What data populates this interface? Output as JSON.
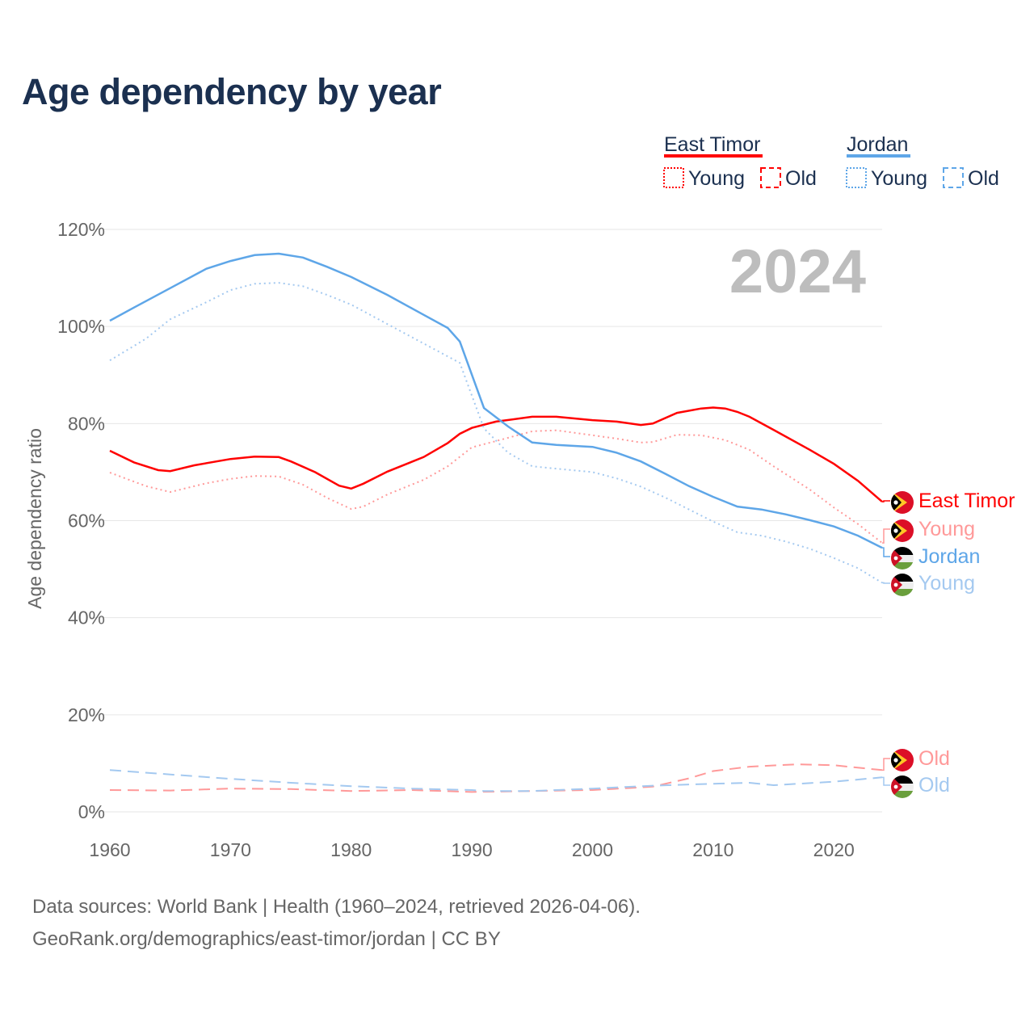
{
  "title": "Age dependency by year",
  "footer": {
    "line1": "Data sources: World Bank | Health (1960–2024, retrieved 2026-04-06).",
    "line2": "GeoRank.org/demographics/east-timor/jordan | CC BY"
  },
  "chart_data": {
    "type": "line",
    "title": "Age dependency by year",
    "ylabel": "Age dependency ratio",
    "xlabel": "",
    "xlim": [
      1960,
      2024
    ],
    "ylim": [
      0,
      120
    ],
    "x_ticks": [
      "1960",
      "1970",
      "1980",
      "1990",
      "2000",
      "2010",
      "2020"
    ],
    "x_tick_values": [
      1960,
      1970,
      1980,
      1990,
      2000,
      2010,
      2020
    ],
    "y_ticks": [
      "0%",
      "20%",
      "40%",
      "60%",
      "80%",
      "100%",
      "120%"
    ],
    "y_tick_values": [
      0,
      20,
      40,
      60,
      80,
      100,
      120
    ],
    "grid": true,
    "year_annotation": "2024",
    "legend": {
      "placement": "top-right",
      "groups": [
        {
          "name": "East Timor",
          "color": "#ff0000",
          "items": [
            "Young",
            "Old"
          ]
        },
        {
          "name": "Jordan",
          "color": "#5ea6e8",
          "items": [
            "Young",
            "Old"
          ]
        }
      ]
    },
    "series": [
      {
        "name": "East Timor",
        "label": "East Timor",
        "country": "east-timor",
        "color": "#ff0000",
        "style": "solid",
        "points": [
          [
            1960,
            74.4
          ],
          [
            1962,
            72
          ],
          [
            1964,
            70.4
          ],
          [
            1965,
            70.2
          ],
          [
            1967,
            71.4
          ],
          [
            1970,
            72.7
          ],
          [
            1972,
            73.2
          ],
          [
            1974,
            73.1
          ],
          [
            1975,
            72.2
          ],
          [
            1977,
            70
          ],
          [
            1979,
            67.2
          ],
          [
            1980,
            66.6
          ],
          [
            1981,
            67.6
          ],
          [
            1983,
            70.1
          ],
          [
            1986,
            73.1
          ],
          [
            1988,
            76
          ],
          [
            1989,
            77.9
          ],
          [
            1990,
            79.1
          ],
          [
            1992,
            80.4
          ],
          [
            1995,
            81.4
          ],
          [
            1997,
            81.4
          ],
          [
            2000,
            80.7
          ],
          [
            2002,
            80.4
          ],
          [
            2004,
            79.7
          ],
          [
            2005,
            80
          ],
          [
            2007,
            82.2
          ],
          [
            2009,
            83.1
          ],
          [
            2010,
            83.3
          ],
          [
            2011,
            83.1
          ],
          [
            2012,
            82.4
          ],
          [
            2013,
            81.4
          ],
          [
            2015,
            78.7
          ],
          [
            2018,
            74.6
          ],
          [
            2020,
            71.7
          ],
          [
            2022,
            68.2
          ],
          [
            2024,
            63.9
          ]
        ]
      },
      {
        "name": "East Timor Young",
        "label": "Young",
        "country": "east-timor",
        "color": "#ff9999",
        "style": "dotted",
        "points": [
          [
            1960,
            69.9
          ],
          [
            1963,
            67.1
          ],
          [
            1965,
            65.9
          ],
          [
            1968,
            67.7
          ],
          [
            1970,
            68.6
          ],
          [
            1972,
            69.2
          ],
          [
            1974,
            69.1
          ],
          [
            1976,
            67.4
          ],
          [
            1978,
            64.7
          ],
          [
            1980,
            62.4
          ],
          [
            1981,
            62.9
          ],
          [
            1983,
            65.4
          ],
          [
            1986,
            68.4
          ],
          [
            1988,
            71.2
          ],
          [
            1990,
            75.1
          ],
          [
            1992,
            76.4
          ],
          [
            1995,
            78.4
          ],
          [
            1997,
            78.6
          ],
          [
            2000,
            77.6
          ],
          [
            2002,
            76.9
          ],
          [
            2004,
            76.1
          ],
          [
            2005,
            76.2
          ],
          [
            2007,
            77.7
          ],
          [
            2009,
            77.6
          ],
          [
            2011,
            76.6
          ],
          [
            2013,
            74.6
          ],
          [
            2015,
            71.2
          ],
          [
            2018,
            66.4
          ],
          [
            2020,
            62.7
          ],
          [
            2022,
            59.3
          ],
          [
            2024,
            55.4
          ]
        ]
      },
      {
        "name": "Jordan",
        "label": "Jordan",
        "country": "jordan",
        "color": "#5ea6e8",
        "style": "solid",
        "points": [
          [
            1960,
            101.2
          ],
          [
            1962,
            103.9
          ],
          [
            1965,
            107.9
          ],
          [
            1968,
            111.9
          ],
          [
            1970,
            113.5
          ],
          [
            1972,
            114.7
          ],
          [
            1974,
            115
          ],
          [
            1976,
            114.2
          ],
          [
            1978,
            112.3
          ],
          [
            1980,
            110.2
          ],
          [
            1983,
            106.5
          ],
          [
            1986,
            102.4
          ],
          [
            1988,
            99.7
          ],
          [
            1989,
            96.9
          ],
          [
            1991,
            83.2
          ],
          [
            1993,
            79.4
          ],
          [
            1995,
            76.1
          ],
          [
            1997,
            75.6
          ],
          [
            2000,
            75.2
          ],
          [
            2002,
            74
          ],
          [
            2004,
            72.2
          ],
          [
            2006,
            69.7
          ],
          [
            2008,
            67.1
          ],
          [
            2010,
            64.9
          ],
          [
            2012,
            62.9
          ],
          [
            2014,
            62.3
          ],
          [
            2016,
            61.3
          ],
          [
            2018,
            60.1
          ],
          [
            2020,
            58.8
          ],
          [
            2022,
            56.9
          ],
          [
            2024,
            54.4
          ]
        ]
      },
      {
        "name": "Jordan Young",
        "label": "Young",
        "country": "jordan",
        "color": "#a4c9f0",
        "style": "dotted",
        "points": [
          [
            1960,
            93
          ],
          [
            1963,
            97.5
          ],
          [
            1965,
            101.5
          ],
          [
            1968,
            105
          ],
          [
            1970,
            107.5
          ],
          [
            1972,
            108.8
          ],
          [
            1974,
            109
          ],
          [
            1976,
            108.3
          ],
          [
            1978,
            106.5
          ],
          [
            1980,
            104.5
          ],
          [
            1983,
            100.5
          ],
          [
            1986,
            96.5
          ],
          [
            1989,
            92.5
          ],
          [
            1991,
            79
          ],
          [
            1993,
            74
          ],
          [
            1995,
            71.2
          ],
          [
            1997,
            70.7
          ],
          [
            2000,
            70
          ],
          [
            2002,
            68.7
          ],
          [
            2004,
            67
          ],
          [
            2006,
            64.8
          ],
          [
            2008,
            62.3
          ],
          [
            2010,
            59.8
          ],
          [
            2012,
            57.6
          ],
          [
            2014,
            56.9
          ],
          [
            2016,
            55.7
          ],
          [
            2018,
            54.2
          ],
          [
            2020,
            52.3
          ],
          [
            2022,
            50.2
          ],
          [
            2024,
            47.2
          ]
        ]
      },
      {
        "name": "East Timor Old",
        "label": "Old",
        "country": "east-timor",
        "color": "#ff9999",
        "style": "dashed",
        "points": [
          [
            1960,
            4.5
          ],
          [
            1965,
            4.4
          ],
          [
            1970,
            4.8
          ],
          [
            1975,
            4.7
          ],
          [
            1980,
            4.3
          ],
          [
            1985,
            4.5
          ],
          [
            1990,
            4.1
          ],
          [
            1995,
            4.3
          ],
          [
            2000,
            4.5
          ],
          [
            2005,
            5.2
          ],
          [
            2008,
            6.9
          ],
          [
            2010,
            8.4
          ],
          [
            2013,
            9.3
          ],
          [
            2017,
            9.8
          ],
          [
            2020,
            9.6
          ],
          [
            2024,
            8.6
          ]
        ]
      },
      {
        "name": "Jordan Old",
        "label": "Old",
        "country": "jordan",
        "color": "#a4c9f0",
        "style": "dashed",
        "points": [
          [
            1960,
            8.6
          ],
          [
            1965,
            7.7
          ],
          [
            1970,
            6.8
          ],
          [
            1975,
            6.0
          ],
          [
            1980,
            5.3
          ],
          [
            1985,
            4.8
          ],
          [
            1990,
            4.5
          ],
          [
            1991,
            4.3
          ],
          [
            1995,
            4.3
          ],
          [
            2000,
            4.8
          ],
          [
            2005,
            5.4
          ],
          [
            2010,
            5.8
          ],
          [
            2013,
            6.0
          ],
          [
            2015,
            5.5
          ],
          [
            2020,
            6.2
          ],
          [
            2024,
            7.1
          ]
        ]
      }
    ]
  }
}
